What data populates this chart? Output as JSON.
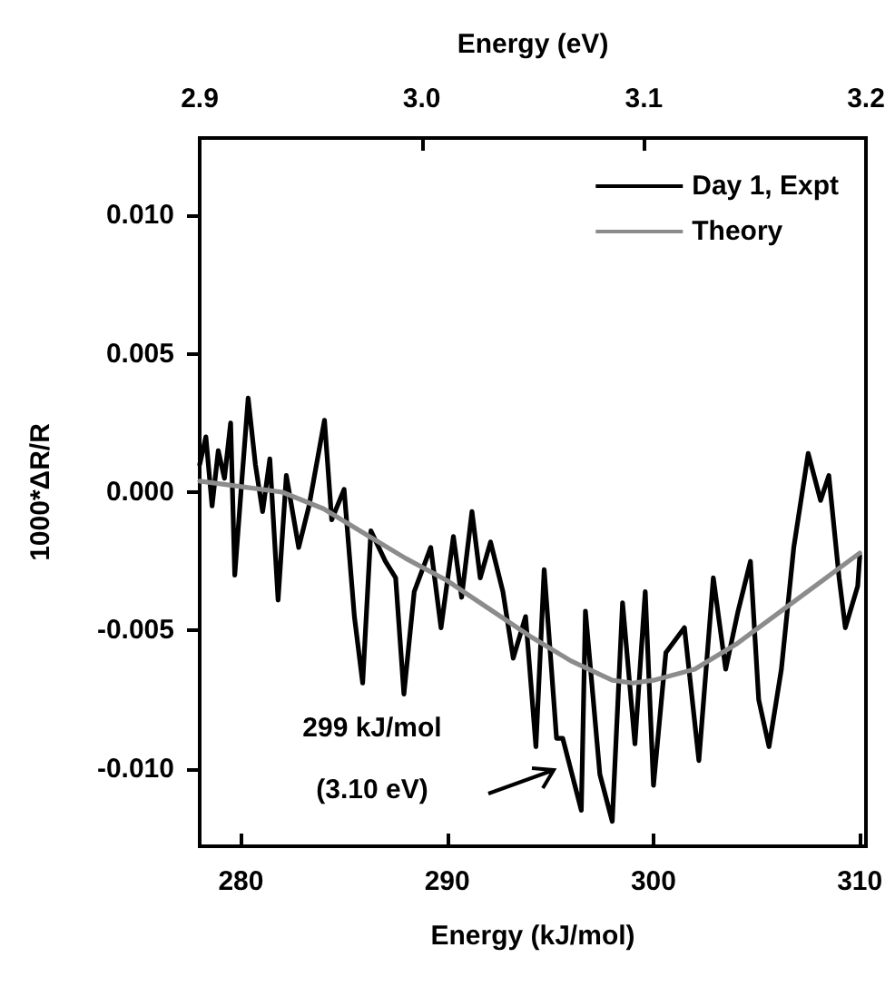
{
  "chart_data": {
    "type": "line",
    "xlabel": "Energy (kJ/mol)",
    "x2label": "Energy (eV)",
    "ylabel": "1000*ΔR/R",
    "xlim": [
      278,
      310.3
    ],
    "xticks": [
      280,
      290,
      300,
      310
    ],
    "x2lim": [
      2.9,
      3.2
    ],
    "x2ticks": [
      2.9,
      {
        "value": 3.0,
        "label": "3.0"
      },
      3.1,
      3.2
    ],
    "ylim": [
      -0.0128,
      0.0128
    ],
    "yticks": [
      {
        "value": -0.01,
        "label": "-0.010"
      },
      {
        "value": -0.005,
        "label": "-0.005"
      },
      {
        "value": 0,
        "label": "0.000"
      },
      {
        "value": 0.005,
        "label": "0.005"
      },
      {
        "value": 0.01,
        "label": "0.010"
      }
    ],
    "grid": false,
    "legend": "top right",
    "marker": "none",
    "line_style": "solid",
    "annotations": [
      "299 kJ/mol",
      "(3.10 eV)"
    ],
    "series": [
      {
        "name": "Day 1, Expt",
        "color": "#000000",
        "x": [
          278.0,
          278.3,
          278.6,
          278.9,
          279.2,
          279.5,
          279.7,
          280.0,
          280.35,
          280.7,
          281.05,
          281.4,
          281.8,
          282.2,
          282.8,
          283.3,
          284.05,
          284.4,
          285.0,
          285.5,
          285.9,
          286.3,
          287.0,
          287.5,
          287.9,
          288.4,
          289.2,
          289.7,
          290.3,
          290.7,
          291.2,
          291.6,
          292.1,
          292.7,
          293.2,
          293.8,
          294.3,
          294.7,
          295.3,
          295.6,
          296.5,
          296.7,
          297.4,
          298.0,
          298.5,
          299.1,
          299.6,
          300.0,
          300.6,
          301.5,
          302.2,
          302.9,
          303.5,
          304.1,
          304.7,
          305.1,
          305.6,
          306.2,
          306.8,
          307.5,
          308.1,
          308.5,
          309.0,
          309.3,
          309.9,
          310.0
        ],
        "values": [
          0.001,
          0.002,
          -0.0005,
          0.0015,
          0.0005,
          0.0025,
          -0.003,
          0.0,
          0.0034,
          0.001,
          -0.0007,
          0.0012,
          -0.0039,
          0.0006,
          -0.002,
          -0.0005,
          0.0026,
          -0.001,
          0.0001,
          -0.0045,
          -0.0069,
          -0.0014,
          -0.0025,
          -0.0031,
          -0.0073,
          -0.0036,
          -0.002,
          -0.0049,
          -0.0016,
          -0.0038,
          -0.0007,
          -0.0031,
          -0.0018,
          -0.0036,
          -0.006,
          -0.0045,
          -0.0092,
          -0.0028,
          -0.0089,
          -0.0089,
          -0.0115,
          -0.0043,
          -0.0102,
          -0.0119,
          -0.004,
          -0.0091,
          -0.0036,
          -0.0106,
          -0.0058,
          -0.0049,
          -0.0097,
          -0.0031,
          -0.0064,
          -0.0043,
          -0.0025,
          -0.0075,
          -0.0092,
          -0.0064,
          -0.002,
          0.0014,
          -0.0003,
          0.0006,
          -0.0031,
          -0.0049,
          -0.0034,
          -0.0023
        ]
      },
      {
        "name": "Theory",
        "color": "#8c8c8c",
        "x": [
          278,
          280,
          282,
          284,
          286,
          288,
          290,
          292,
          294,
          296,
          298,
          299,
          300,
          302,
          304,
          306,
          308,
          310
        ],
        "values": [
          0.0004,
          0.0002,
          0.0,
          -0.0006,
          -0.0015,
          -0.0024,
          -0.0032,
          -0.0042,
          -0.0052,
          -0.0061,
          -0.0068,
          -0.0069,
          -0.0068,
          -0.0064,
          -0.0055,
          -0.0044,
          -0.0033,
          -0.0022
        ]
      }
    ]
  }
}
